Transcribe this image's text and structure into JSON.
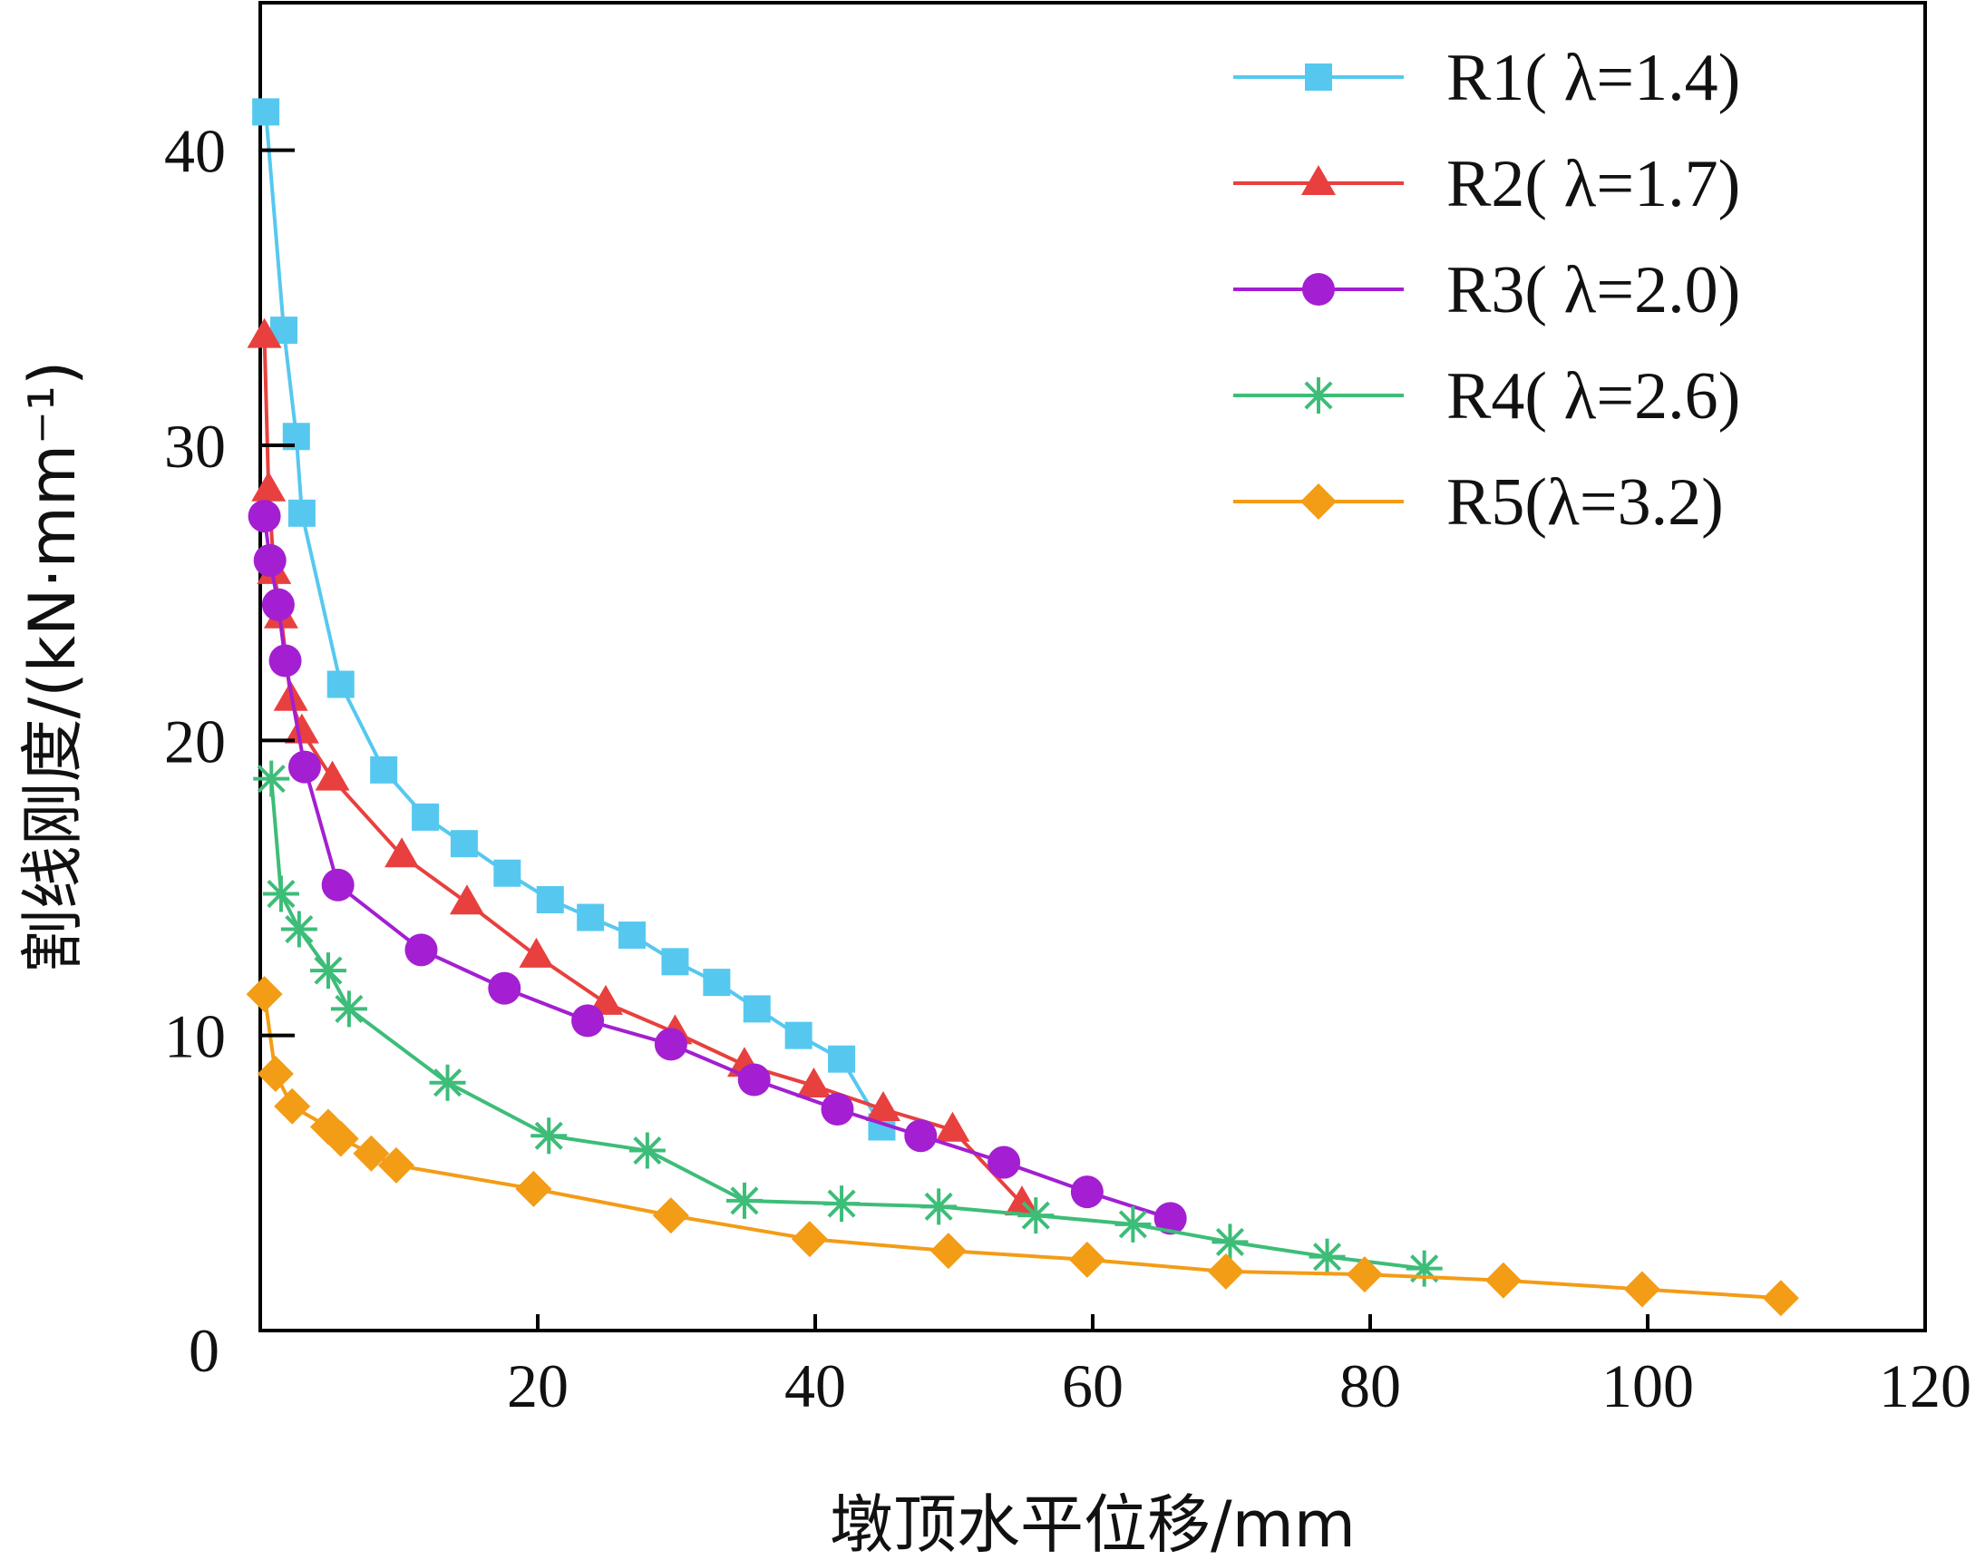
{
  "chart_data": {
    "type": "line",
    "xlabel": "墩顶水平位移/mm",
    "ylabel": "割线刚度/(kN·mm⁻¹)",
    "xlim": [
      0,
      120
    ],
    "ylim": [
      0,
      45
    ],
    "xticks": [
      20,
      40,
      60,
      80,
      100,
      120
    ],
    "yticks": [
      10,
      20,
      30,
      40
    ],
    "origin_label": "0",
    "legend_position": "top-right",
    "grid": false,
    "series": [
      {
        "name": "R1( λ=1.4)",
        "color": "#56c8ef",
        "marker": "square",
        "x": [
          0.4,
          1.7,
          2.6,
          3.0,
          5.8,
          8.9,
          11.9,
          14.7,
          17.8,
          20.9,
          23.8,
          26.8,
          29.9,
          32.9,
          35.8,
          38.8,
          41.9,
          44.8
        ],
        "y": [
          41.3,
          33.9,
          30.3,
          27.7,
          21.9,
          19.0,
          17.4,
          16.5,
          15.5,
          14.6,
          14.0,
          13.4,
          12.5,
          11.8,
          10.9,
          10.0,
          9.2,
          6.9
        ]
      },
      {
        "name": "R2( λ=1.7)",
        "color": "#e8403e",
        "marker": "triangle",
        "x": [
          0.3,
          0.6,
          1.0,
          1.5,
          2.2,
          3.0,
          5.2,
          10.2,
          14.9,
          19.9,
          24.9,
          29.9,
          34.9,
          39.9,
          44.9,
          49.9,
          54.9
        ],
        "y": [
          33.7,
          28.5,
          25.7,
          24.2,
          21.4,
          20.3,
          18.7,
          16.1,
          14.5,
          12.7,
          11.1,
          10.1,
          9.0,
          8.3,
          7.5,
          6.8,
          4.3
        ]
      },
      {
        "name": "R3( λ=2.0)",
        "color": "#a31fd1",
        "marker": "circle",
        "x": [
          0.3,
          0.7,
          1.3,
          1.8,
          3.2,
          5.6,
          11.6,
          17.6,
          23.6,
          29.6,
          35.6,
          41.6,
          47.6,
          53.6,
          59.6,
          65.6
        ],
        "y": [
          27.6,
          26.1,
          24.6,
          22.7,
          19.1,
          15.1,
          12.9,
          11.6,
          10.5,
          9.7,
          8.5,
          7.5,
          6.6,
          5.7,
          4.7,
          3.8
        ]
      },
      {
        "name": "R4( λ=2.6)",
        "color": "#3dbd78",
        "marker": "asterisk",
        "x": [
          0.8,
          1.5,
          2.8,
          4.9,
          6.4,
          13.5,
          20.8,
          27.9,
          34.9,
          41.9,
          48.9,
          55.9,
          62.9,
          69.9,
          76.9,
          83.9
        ],
        "y": [
          18.7,
          14.8,
          13.6,
          12.2,
          10.9,
          8.4,
          6.6,
          6.1,
          4.4,
          4.3,
          4.2,
          3.9,
          3.6,
          3.0,
          2.5,
          2.1
        ]
      },
      {
        "name": "R5(λ=3.2)",
        "color": "#f39c16",
        "marker": "diamond",
        "x": [
          0.3,
          1.1,
          2.3,
          4.9,
          5.8,
          8.0,
          9.8,
          19.7,
          29.6,
          39.6,
          49.6,
          59.6,
          69.6,
          79.6,
          89.6,
          99.6,
          109.6
        ],
        "y": [
          11.4,
          8.7,
          7.6,
          6.9,
          6.5,
          6.0,
          5.6,
          4.8,
          3.9,
          3.1,
          2.7,
          2.4,
          2.0,
          1.9,
          1.7,
          1.4,
          1.1
        ]
      }
    ]
  }
}
